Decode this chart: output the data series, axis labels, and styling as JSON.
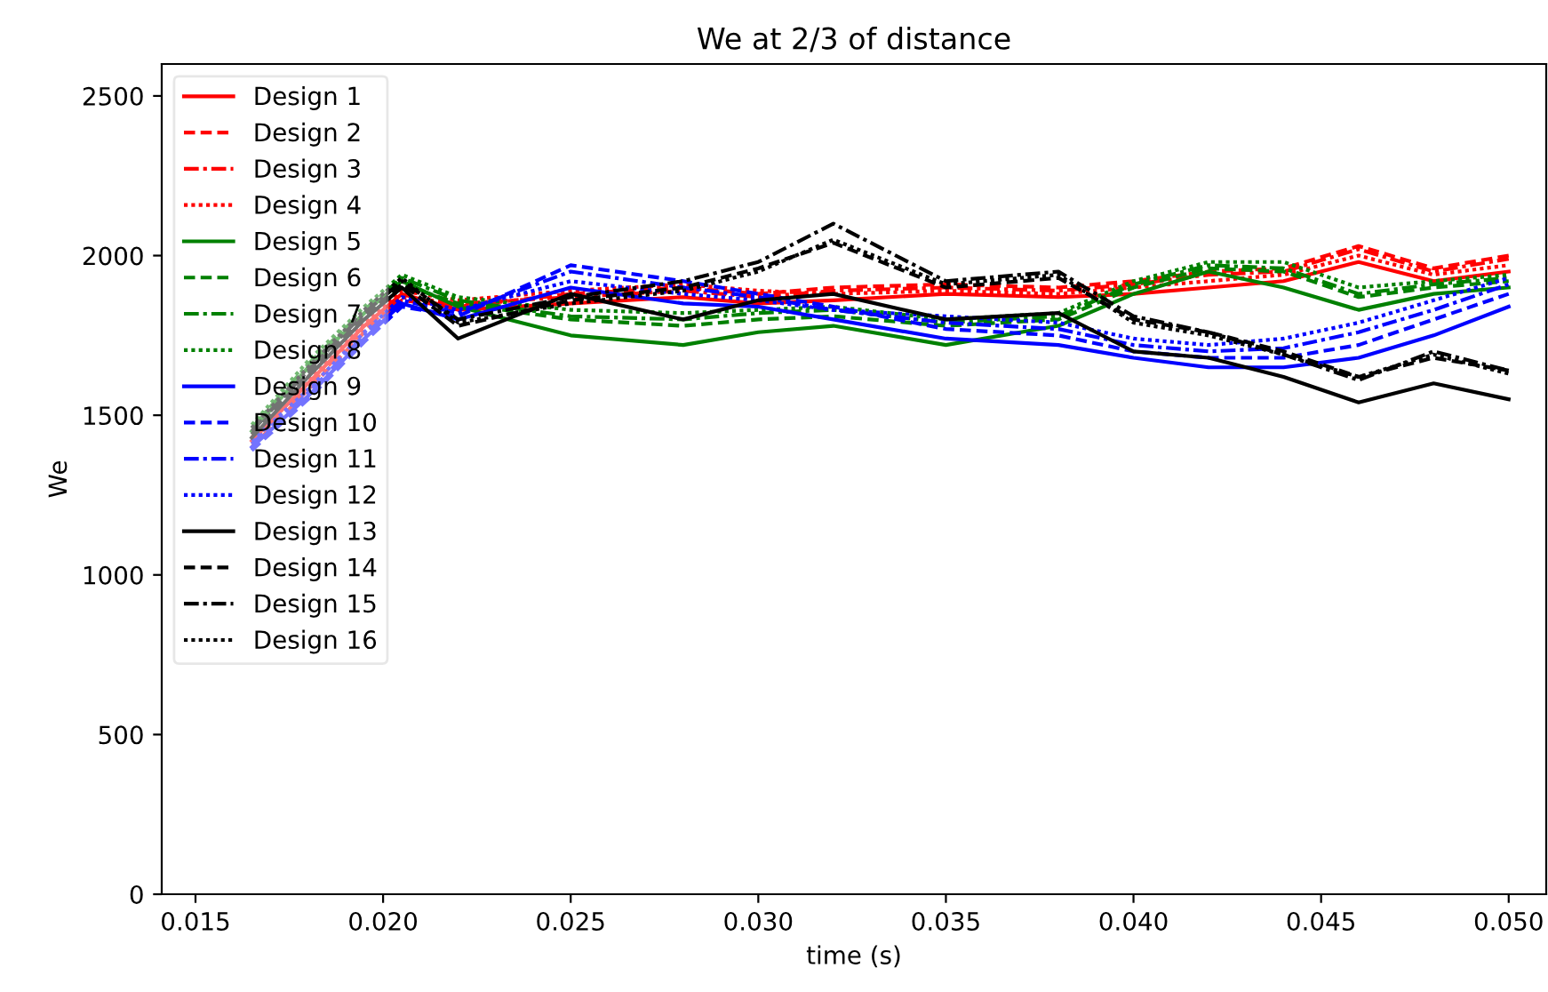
{
  "chart_data": {
    "type": "line",
    "title": "We at 2/3 of distance",
    "xlabel": "time (s)",
    "ylabel": "We",
    "x": [
      0.0165,
      0.018,
      0.0195,
      0.0205,
      0.022,
      0.025,
      0.028,
      0.03,
      0.032,
      0.035,
      0.038,
      0.04,
      0.042,
      0.044,
      0.046,
      0.048,
      0.05
    ],
    "xlim": [
      0.0141,
      0.051
    ],
    "ylim": [
      0,
      2600
    ],
    "xticks": [
      {
        "value": 0.015,
        "label": "0.015"
      },
      {
        "value": 0.02,
        "label": "0.020"
      },
      {
        "value": 0.025,
        "label": "0.025"
      },
      {
        "value": 0.03,
        "label": "0.030"
      },
      {
        "value": 0.035,
        "label": "0.035"
      },
      {
        "value": 0.04,
        "label": "0.040"
      },
      {
        "value": 0.045,
        "label": "0.045"
      },
      {
        "value": 0.05,
        "label": "0.050"
      }
    ],
    "yticks": [
      0,
      500,
      1000,
      1500,
      2000,
      2500
    ],
    "grid": false,
    "legend": "top left",
    "marker": "none",
    "series": [
      {
        "name": "Design 1",
        "color": "#ff0000",
        "line_style": "solid",
        "values": [
          1420,
          1600,
          1780,
          1880,
          1830,
          1850,
          1870,
          1850,
          1860,
          1880,
          1870,
          1880,
          1900,
          1920,
          1980,
          1920,
          1950
        ]
      },
      {
        "name": "Design 2",
        "color": "#ff0000",
        "line_style": "dashed",
        "values": [
          1400,
          1580,
          1760,
          1860,
          1840,
          1880,
          1900,
          1880,
          1900,
          1910,
          1900,
          1920,
          1950,
          1960,
          2030,
          1960,
          2000
        ]
      },
      {
        "name": "Design 3",
        "color": "#ff0000",
        "line_style": "dashdot",
        "values": [
          1410,
          1590,
          1770,
          1870,
          1850,
          1870,
          1890,
          1870,
          1890,
          1900,
          1890,
          1910,
          1940,
          1950,
          2020,
          1950,
          1990
        ]
      },
      {
        "name": "Design 4",
        "color": "#ff0000",
        "line_style": "dotted",
        "values": [
          1430,
          1610,
          1790,
          1890,
          1860,
          1890,
          1910,
          1890,
          1880,
          1890,
          1880,
          1900,
          1920,
          1940,
          2000,
          1940,
          1970
        ]
      },
      {
        "name": "Design 5",
        "color": "#008000",
        "line_style": "solid",
        "values": [
          1450,
          1650,
          1820,
          1920,
          1840,
          1750,
          1720,
          1760,
          1780,
          1720,
          1780,
          1880,
          1950,
          1900,
          1830,
          1880,
          1900
        ]
      },
      {
        "name": "Design 6",
        "color": "#008000",
        "line_style": "dashed",
        "values": [
          1440,
          1640,
          1810,
          1910,
          1850,
          1800,
          1780,
          1800,
          1810,
          1780,
          1800,
          1900,
          1960,
          1950,
          1870,
          1900,
          1920
        ]
      },
      {
        "name": "Design 7",
        "color": "#008000",
        "line_style": "dashdot",
        "values": [
          1460,
          1660,
          1830,
          1930,
          1860,
          1810,
          1800,
          1820,
          1830,
          1790,
          1810,
          1910,
          1970,
          1960,
          1880,
          1910,
          1930
        ]
      },
      {
        "name": "Design 8",
        "color": "#008000",
        "line_style": "dotted",
        "values": [
          1470,
          1670,
          1840,
          1940,
          1870,
          1830,
          1820,
          1830,
          1840,
          1800,
          1820,
          1920,
          1980,
          1980,
          1900,
          1920,
          1940
        ]
      },
      {
        "name": "Design 9",
        "color": "#0000ff",
        "line_style": "solid",
        "values": [
          1400,
          1560,
          1740,
          1850,
          1800,
          1900,
          1850,
          1840,
          1800,
          1740,
          1720,
          1680,
          1650,
          1650,
          1680,
          1750,
          1840
        ]
      },
      {
        "name": "Design 10",
        "color": "#0000ff",
        "line_style": "dashed",
        "values": [
          1390,
          1550,
          1730,
          1840,
          1810,
          1970,
          1920,
          1880,
          1840,
          1770,
          1750,
          1700,
          1680,
          1680,
          1720,
          1800,
          1880
        ]
      },
      {
        "name": "Design 11",
        "color": "#0000ff",
        "line_style": "dashdot",
        "values": [
          1410,
          1570,
          1750,
          1860,
          1820,
          1950,
          1900,
          1870,
          1830,
          1790,
          1770,
          1720,
          1700,
          1710,
          1760,
          1830,
          1910
        ]
      },
      {
        "name": "Design 12",
        "color": "#0000ff",
        "line_style": "dotted",
        "values": [
          1420,
          1580,
          1760,
          1870,
          1830,
          1920,
          1880,
          1860,
          1830,
          1810,
          1790,
          1740,
          1720,
          1740,
          1790,
          1860,
          1930
        ]
      },
      {
        "name": "Design 13",
        "color": "#000000",
        "line_style": "solid",
        "values": [
          1430,
          1620,
          1800,
          1900,
          1740,
          1880,
          1800,
          1860,
          1880,
          1800,
          1820,
          1700,
          1680,
          1620,
          1540,
          1600,
          1550
        ]
      },
      {
        "name": "Design 14",
        "color": "#000000",
        "line_style": "dashed",
        "values": [
          1440,
          1630,
          1810,
          1910,
          1780,
          1860,
          1900,
          1960,
          2040,
          1900,
          1930,
          1800,
          1760,
          1700,
          1620,
          1680,
          1640
        ]
      },
      {
        "name": "Design 15",
        "color": "#000000",
        "line_style": "dashdot",
        "values": [
          1450,
          1640,
          1820,
          1920,
          1800,
          1870,
          1920,
          1980,
          2100,
          1920,
          1950,
          1810,
          1760,
          1690,
          1610,
          1700,
          1640
        ]
      },
      {
        "name": "Design 16",
        "color": "#000000",
        "line_style": "dotted",
        "values": [
          1460,
          1650,
          1830,
          1930,
          1790,
          1850,
          1890,
          1950,
          2050,
          1910,
          1940,
          1790,
          1750,
          1690,
          1620,
          1690,
          1630
        ]
      }
    ]
  }
}
